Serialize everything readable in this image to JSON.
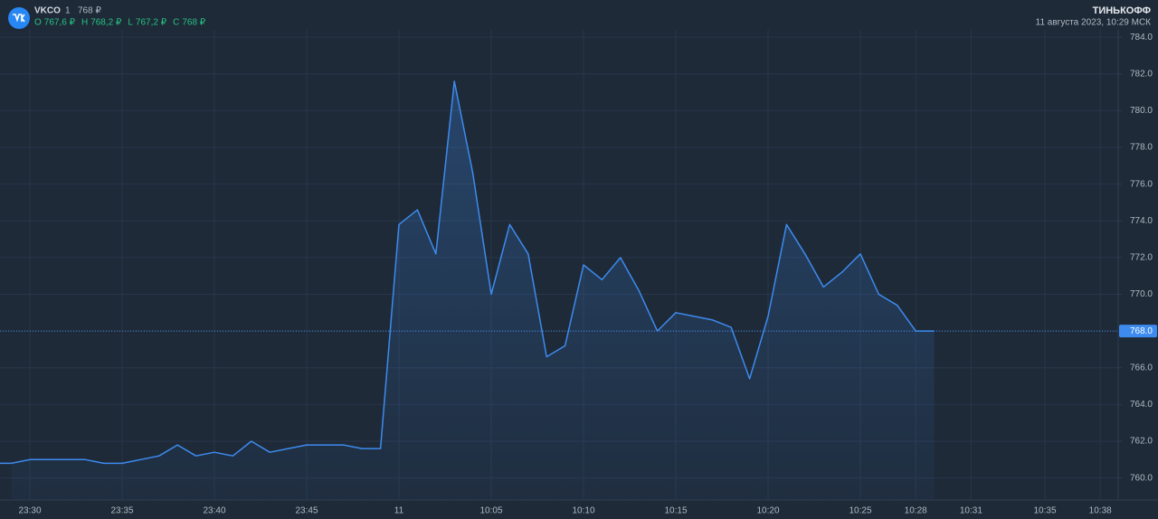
{
  "header": {
    "ticker": "VKCO",
    "interval": "1",
    "price": "768 ₽",
    "ohlc": [
      {
        "key": "O",
        "value": "767,6 ₽"
      },
      {
        "key": "H",
        "value": "768,2 ₽"
      },
      {
        "key": "L",
        "value": "767,2 ₽"
      },
      {
        "key": "C",
        "value": "768 ₽"
      }
    ],
    "brand": "ТИНЬКОФФ",
    "timestamp": "11 августа 2023, 10:29 МСК"
  },
  "chart_data": {
    "type": "line",
    "color": "#3d8bef",
    "grid": true,
    "categories": [
      null,
      "23:30",
      null,
      null,
      null,
      null,
      "23:35",
      null,
      null,
      null,
      null,
      "23:40",
      null,
      null,
      null,
      null,
      "23:45",
      null,
      null,
      null,
      null,
      "11",
      null,
      null,
      null,
      null,
      "10:05",
      null,
      null,
      null,
      null,
      "10:10",
      null,
      null,
      null,
      null,
      "10:15",
      null,
      null,
      null,
      null,
      "10:20",
      null,
      null,
      null,
      null,
      "10:25",
      null,
      null,
      "10:28",
      null,
      null,
      "10:31",
      null,
      null,
      null,
      "10:35",
      null,
      null,
      "10:38"
    ],
    "values": [
      760.8,
      761.0,
      761.0,
      761.0,
      761.0,
      760.8,
      760.8,
      761.0,
      761.2,
      761.8,
      761.2,
      761.4,
      761.2,
      762.0,
      761.4,
      761.6,
      761.8,
      761.8,
      761.8,
      761.6,
      761.6,
      773.8,
      774.6,
      772.2,
      781.6,
      776.6,
      770.0,
      773.8,
      772.2,
      766.6,
      767.2,
      771.6,
      770.8,
      772.0,
      770.2,
      768.0,
      769.0,
      768.8,
      768.6,
      768.2,
      765.4,
      768.8,
      773.8,
      772.2,
      770.4,
      771.2,
      772.2,
      770.0,
      769.4,
      768.0,
      768.0,
      null,
      null,
      null,
      null,
      null,
      null,
      null,
      null,
      null
    ],
    "ylim": [
      758.8,
      784.4
    ],
    "yticks": [
      {
        "value": 760,
        "label": "760.0"
      },
      {
        "value": 762,
        "label": "762.0"
      },
      {
        "value": 764,
        "label": "764.0"
      },
      {
        "value": 766,
        "label": "766.0"
      },
      {
        "value": 768,
        "label": "768.0"
      },
      {
        "value": 770,
        "label": "770.0"
      },
      {
        "value": 772,
        "label": "772.0"
      },
      {
        "value": 774,
        "label": "774.0"
      },
      {
        "value": 776,
        "label": "776.0"
      },
      {
        "value": 778,
        "label": "778.0"
      },
      {
        "value": 780,
        "label": "780.0"
      },
      {
        "value": 782,
        "label": "782.0"
      },
      {
        "value": 784,
        "label": "784.0"
      }
    ],
    "last_price": {
      "value": 768,
      "label": "768.0"
    }
  }
}
